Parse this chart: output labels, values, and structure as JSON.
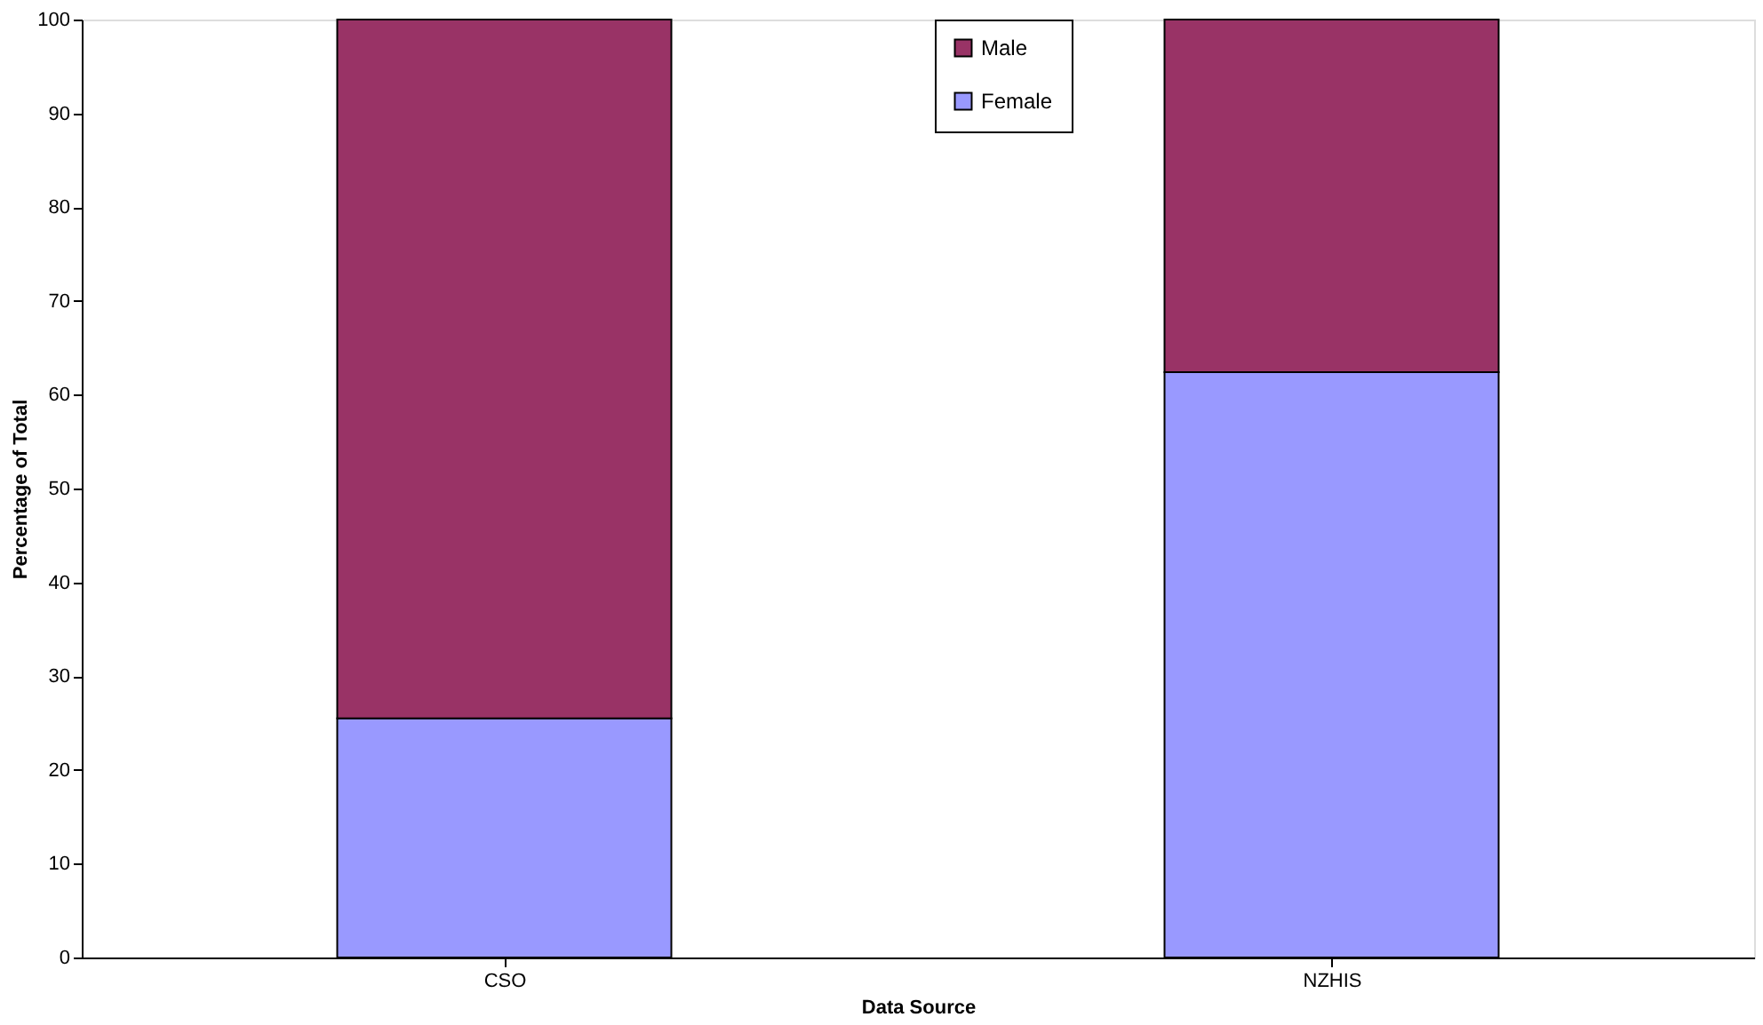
{
  "chart_data": {
    "type": "bar",
    "stacked": true,
    "xlabel": "Data Source",
    "ylabel": "Percentage of Total",
    "categories": [
      "CSO",
      "NZHIS"
    ],
    "series": [
      {
        "name": "Female",
        "color": "#9999ff",
        "values": [
          25.5,
          62.4
        ]
      },
      {
        "name": "Male",
        "color": "#993366",
        "values": [
          74.5,
          37.6
        ]
      }
    ],
    "ylim": [
      0,
      100
    ],
    "yticks": [
      0,
      10,
      20,
      30,
      40,
      50,
      60,
      70,
      80,
      90,
      100
    ],
    "grid": false,
    "legend": "top"
  }
}
